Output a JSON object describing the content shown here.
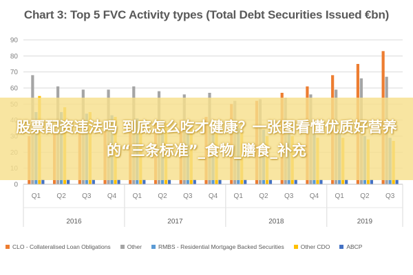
{
  "chart_data": {
    "type": "bar",
    "title": "Chart 3: Top 5 FVC Activity types (Total Debt Securities Issued €bn)",
    "xlabel": "",
    "ylabel": "",
    "ylim": [
      0,
      90
    ],
    "yticks": [
      0,
      10,
      20,
      30,
      40,
      50,
      60,
      70,
      80,
      90
    ],
    "grid": true,
    "legend_position": "bottom",
    "categories": [
      "Q1",
      "Q2",
      "Q3",
      "Q4",
      "Q1",
      "Q2",
      "Q3",
      "Q4",
      "Q1",
      "Q2",
      "Q3",
      "Q4",
      "Q1",
      "Q2",
      "Q3"
    ],
    "years": [
      {
        "label": "2016",
        "quarters": 4
      },
      {
        "label": "2017",
        "quarters": 4
      },
      {
        "label": "2018",
        "quarters": 4
      },
      {
        "label": "2019",
        "quarters": 3
      }
    ],
    "series": [
      {
        "name": "CLO - Collateralised Loan Obligations",
        "color": "#ed7d31",
        "values": [
          30,
          32,
          33,
          34,
          37,
          38,
          40,
          42,
          50,
          52,
          57,
          61,
          68,
          75,
          83
        ]
      },
      {
        "name": "Other",
        "color": "#a5a5a5",
        "values": [
          68,
          61,
          59,
          59,
          61,
          58,
          56,
          57,
          52,
          53,
          54,
          56,
          59,
          66,
          67
        ]
      },
      {
        "name": "RMBS - Residential Mortgage Backed Securities",
        "color": "#5b9bd5",
        "values": [
          45,
          45,
          44,
          43,
          41,
          40,
          37,
          36,
          35,
          34,
          33,
          33,
          33,
          30,
          29
        ]
      },
      {
        "name": "Other CDO",
        "color": "#ffc000",
        "values": [
          55,
          48,
          45,
          42,
          40,
          38,
          35,
          33,
          32,
          30,
          30,
          29,
          29,
          28,
          27
        ]
      },
      {
        "name": "ABCP",
        "color": "#4472c4",
        "values": [
          3,
          3,
          3,
          3,
          3,
          3,
          3,
          3,
          3,
          3,
          3,
          3,
          3,
          3,
          3
        ]
      }
    ]
  },
  "overlay": {
    "banner_text": "股票配资违法吗 到底怎么吃才健康？一张图看懂优质好营养的“三条标准”_食物_膳食_补充"
  }
}
